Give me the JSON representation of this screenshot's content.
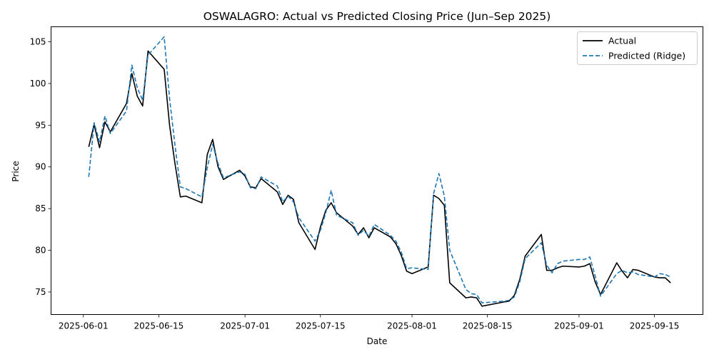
{
  "chart_data": {
    "type": "line",
    "title": "OSWALAGRO: Actual vs Predicted Closing Price (Jun–Sep 2025)",
    "xlabel": "Date",
    "ylabel": "Price",
    "xlim": [
      "2025-05-26",
      "2025-09-24"
    ],
    "ylim": [
      72.3,
      106.8
    ],
    "x_ticks": [
      "2025-06-01",
      "2025-06-15",
      "2025-07-01",
      "2025-07-15",
      "2025-08-01",
      "2025-08-15",
      "2025-09-01",
      "2025-09-15"
    ],
    "y_ticks": [
      75,
      80,
      85,
      90,
      95,
      100,
      105
    ],
    "grid": false,
    "legend_position": "top-right",
    "series": [
      {
        "name": "Actual",
        "color": "#000000",
        "style": "solid",
        "points": [
          [
            "2025-06-02",
            92.4
          ],
          [
            "2025-06-03",
            95.1
          ],
          [
            "2025-06-04",
            92.3
          ],
          [
            "2025-06-05",
            95.4
          ],
          [
            "2025-06-06",
            94.2
          ],
          [
            "2025-06-09",
            97.6
          ],
          [
            "2025-06-10",
            101.2
          ],
          [
            "2025-06-11",
            98.5
          ],
          [
            "2025-06-12",
            97.3
          ],
          [
            "2025-06-13",
            103.9
          ],
          [
            "2025-06-16",
            101.7
          ],
          [
            "2025-06-17",
            95.0
          ],
          [
            "2025-06-18",
            90.4
          ],
          [
            "2025-06-19",
            86.4
          ],
          [
            "2025-06-20",
            86.5
          ],
          [
            "2025-06-23",
            85.7
          ],
          [
            "2025-06-24",
            91.5
          ],
          [
            "2025-06-25",
            93.3
          ],
          [
            "2025-06-26",
            90.0
          ],
          [
            "2025-06-27",
            88.5
          ],
          [
            "2025-06-30",
            89.6
          ],
          [
            "2025-07-01",
            88.9
          ],
          [
            "2025-07-02",
            87.6
          ],
          [
            "2025-07-03",
            87.5
          ],
          [
            "2025-07-04",
            88.6
          ],
          [
            "2025-07-07",
            87.0
          ],
          [
            "2025-07-08",
            85.5
          ],
          [
            "2025-07-09",
            86.6
          ],
          [
            "2025-07-10",
            86.1
          ],
          [
            "2025-07-11",
            83.3
          ],
          [
            "2025-07-14",
            80.1
          ],
          [
            "2025-07-15",
            82.8
          ],
          [
            "2025-07-16",
            84.8
          ],
          [
            "2025-07-17",
            85.7
          ],
          [
            "2025-07-18",
            84.5
          ],
          [
            "2025-07-21",
            82.9
          ],
          [
            "2025-07-22",
            81.9
          ],
          [
            "2025-07-23",
            82.7
          ],
          [
            "2025-07-24",
            81.5
          ],
          [
            "2025-07-25",
            82.7
          ],
          [
            "2025-07-28",
            81.6
          ],
          [
            "2025-07-29",
            80.8
          ],
          [
            "2025-07-30",
            79.4
          ],
          [
            "2025-07-31",
            77.5
          ],
          [
            "2025-08-01",
            77.2
          ],
          [
            "2025-08-04",
            78.0
          ],
          [
            "2025-08-05",
            86.6
          ],
          [
            "2025-08-06",
            86.2
          ],
          [
            "2025-08-07",
            85.4
          ],
          [
            "2025-08-08",
            76.1
          ],
          [
            "2025-08-11",
            74.3
          ],
          [
            "2025-08-12",
            74.4
          ],
          [
            "2025-08-13",
            74.3
          ],
          [
            "2025-08-14",
            73.3
          ],
          [
            "2025-08-18",
            73.8
          ],
          [
            "2025-08-19",
            73.9
          ],
          [
            "2025-08-20",
            74.6
          ],
          [
            "2025-08-21",
            76.5
          ],
          [
            "2025-08-22",
            79.3
          ],
          [
            "2025-08-25",
            81.9
          ],
          [
            "2025-08-26",
            77.6
          ],
          [
            "2025-08-27",
            77.6
          ],
          [
            "2025-08-28",
            77.9
          ],
          [
            "2025-08-29",
            78.1
          ],
          [
            "2025-09-01",
            78.0
          ],
          [
            "2025-09-02",
            78.1
          ],
          [
            "2025-09-03",
            78.4
          ],
          [
            "2025-09-04",
            76.2
          ],
          [
            "2025-09-05",
            74.7
          ],
          [
            "2025-09-08",
            78.5
          ],
          [
            "2025-09-09",
            77.5
          ],
          [
            "2025-09-10",
            76.7
          ],
          [
            "2025-09-11",
            77.7
          ],
          [
            "2025-09-12",
            77.6
          ],
          [
            "2025-09-15",
            76.8
          ],
          [
            "2025-09-16",
            76.7
          ],
          [
            "2025-09-17",
            76.7
          ],
          [
            "2025-09-18",
            76.1
          ]
        ]
      },
      {
        "name": "Predicted (Ridge)",
        "color": "#1f77b4",
        "style": "dashed",
        "points": [
          [
            "2025-06-02",
            88.8
          ],
          [
            "2025-06-03",
            95.3
          ],
          [
            "2025-06-04",
            93.0
          ],
          [
            "2025-06-05",
            96.1
          ],
          [
            "2025-06-06",
            94.0
          ],
          [
            "2025-06-09",
            96.7
          ],
          [
            "2025-06-10",
            102.2
          ],
          [
            "2025-06-11",
            99.5
          ],
          [
            "2025-06-12",
            98.0
          ],
          [
            "2025-06-13",
            103.4
          ],
          [
            "2025-06-16",
            105.6
          ],
          [
            "2025-06-17",
            98.2
          ],
          [
            "2025-06-18",
            92.6
          ],
          [
            "2025-06-19",
            87.6
          ],
          [
            "2025-06-20",
            87.4
          ],
          [
            "2025-06-23",
            86.4
          ],
          [
            "2025-06-24",
            89.9
          ],
          [
            "2025-06-25",
            92.7
          ],
          [
            "2025-06-26",
            90.4
          ],
          [
            "2025-06-27",
            88.7
          ],
          [
            "2025-06-30",
            89.4
          ],
          [
            "2025-07-01",
            89.1
          ],
          [
            "2025-07-02",
            87.5
          ],
          [
            "2025-07-03",
            87.4
          ],
          [
            "2025-07-04",
            88.8
          ],
          [
            "2025-07-07",
            87.7
          ],
          [
            "2025-07-08",
            85.8
          ],
          [
            "2025-07-09",
            86.5
          ],
          [
            "2025-07-10",
            85.8
          ],
          [
            "2025-07-11",
            83.9
          ],
          [
            "2025-07-14",
            81.1
          ],
          [
            "2025-07-15",
            82.4
          ],
          [
            "2025-07-16",
            84.5
          ],
          [
            "2025-07-17",
            87.2
          ],
          [
            "2025-07-18",
            84.2
          ],
          [
            "2025-07-21",
            83.3
          ],
          [
            "2025-07-22",
            81.8
          ],
          [
            "2025-07-23",
            82.4
          ],
          [
            "2025-07-24",
            81.7
          ],
          [
            "2025-07-25",
            83.1
          ],
          [
            "2025-07-28",
            81.8
          ],
          [
            "2025-07-29",
            81.1
          ],
          [
            "2025-07-30",
            79.8
          ],
          [
            "2025-07-31",
            77.8
          ],
          [
            "2025-08-01",
            77.9
          ],
          [
            "2025-08-04",
            77.7
          ],
          [
            "2025-08-05",
            86.8
          ],
          [
            "2025-08-06",
            89.2
          ],
          [
            "2025-08-07",
            86.5
          ],
          [
            "2025-08-08",
            80.0
          ],
          [
            "2025-08-11",
            75.3
          ],
          [
            "2025-08-12",
            74.8
          ],
          [
            "2025-08-13",
            74.7
          ],
          [
            "2025-08-14",
            73.7
          ],
          [
            "2025-08-18",
            73.9
          ],
          [
            "2025-08-19",
            74.0
          ],
          [
            "2025-08-20",
            74.4
          ],
          [
            "2025-08-21",
            76.2
          ],
          [
            "2025-08-22",
            79.0
          ],
          [
            "2025-08-25",
            80.9
          ],
          [
            "2025-08-26",
            78.2
          ],
          [
            "2025-08-27",
            77.3
          ],
          [
            "2025-08-28",
            78.4
          ],
          [
            "2025-08-29",
            78.7
          ],
          [
            "2025-09-01",
            78.9
          ],
          [
            "2025-09-02",
            78.9
          ],
          [
            "2025-09-03",
            79.2
          ],
          [
            "2025-09-04",
            76.9
          ],
          [
            "2025-09-05",
            74.5
          ],
          [
            "2025-09-08",
            77.2
          ],
          [
            "2025-09-09",
            77.6
          ],
          [
            "2025-09-10",
            77.3
          ],
          [
            "2025-09-11",
            77.4
          ],
          [
            "2025-09-12",
            77.1
          ],
          [
            "2025-09-15",
            76.8
          ],
          [
            "2025-09-16",
            77.2
          ],
          [
            "2025-09-17",
            77.1
          ],
          [
            "2025-09-18",
            76.8
          ]
        ]
      }
    ]
  }
}
